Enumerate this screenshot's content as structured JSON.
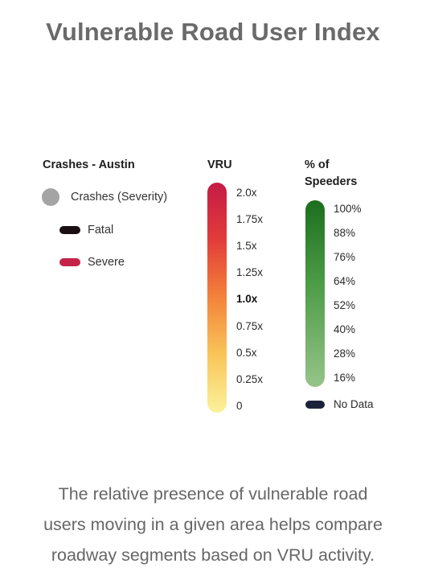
{
  "title": "Vulnerable Road User Index",
  "crashes": {
    "heading": "Crashes - Austin",
    "items": [
      {
        "label": "Crashes (Severity)",
        "icon": "grey-circle-icon",
        "color": "#a4a4a4"
      },
      {
        "label": "Fatal",
        "icon": "black-pill-icon",
        "color": "#1a1014"
      },
      {
        "label": "Severe",
        "icon": "red-pill-icon",
        "color": "#c42347"
      }
    ]
  },
  "vru": {
    "heading": "VRU",
    "ticks": [
      "2.0x",
      "1.75x",
      "1.5x",
      "1.25x",
      "1.0x",
      "0.75x",
      "0.5x",
      "0.25x",
      "0"
    ],
    "gradient_colors": [
      "#c41a45",
      "#e23d3a",
      "#f3833a",
      "#f9c55a",
      "#fbf29c"
    ]
  },
  "speeders": {
    "heading_line1": "% of",
    "heading_line2": "Speeders",
    "ticks": [
      "100%",
      "88%",
      "76%",
      "64%",
      "52%",
      "40%",
      "28%",
      "16%"
    ],
    "gradient_colors": [
      "#1c6e1e",
      "#4d9c47",
      "#96c489"
    ],
    "no_data_label": "No Data",
    "no_data_color": "#1b2238"
  },
  "caption": {
    "line1": "The relative presence of vulnerable road",
    "line2": "users moving in a given area helps compare",
    "line3": "roadway segments based on VRU activity."
  }
}
